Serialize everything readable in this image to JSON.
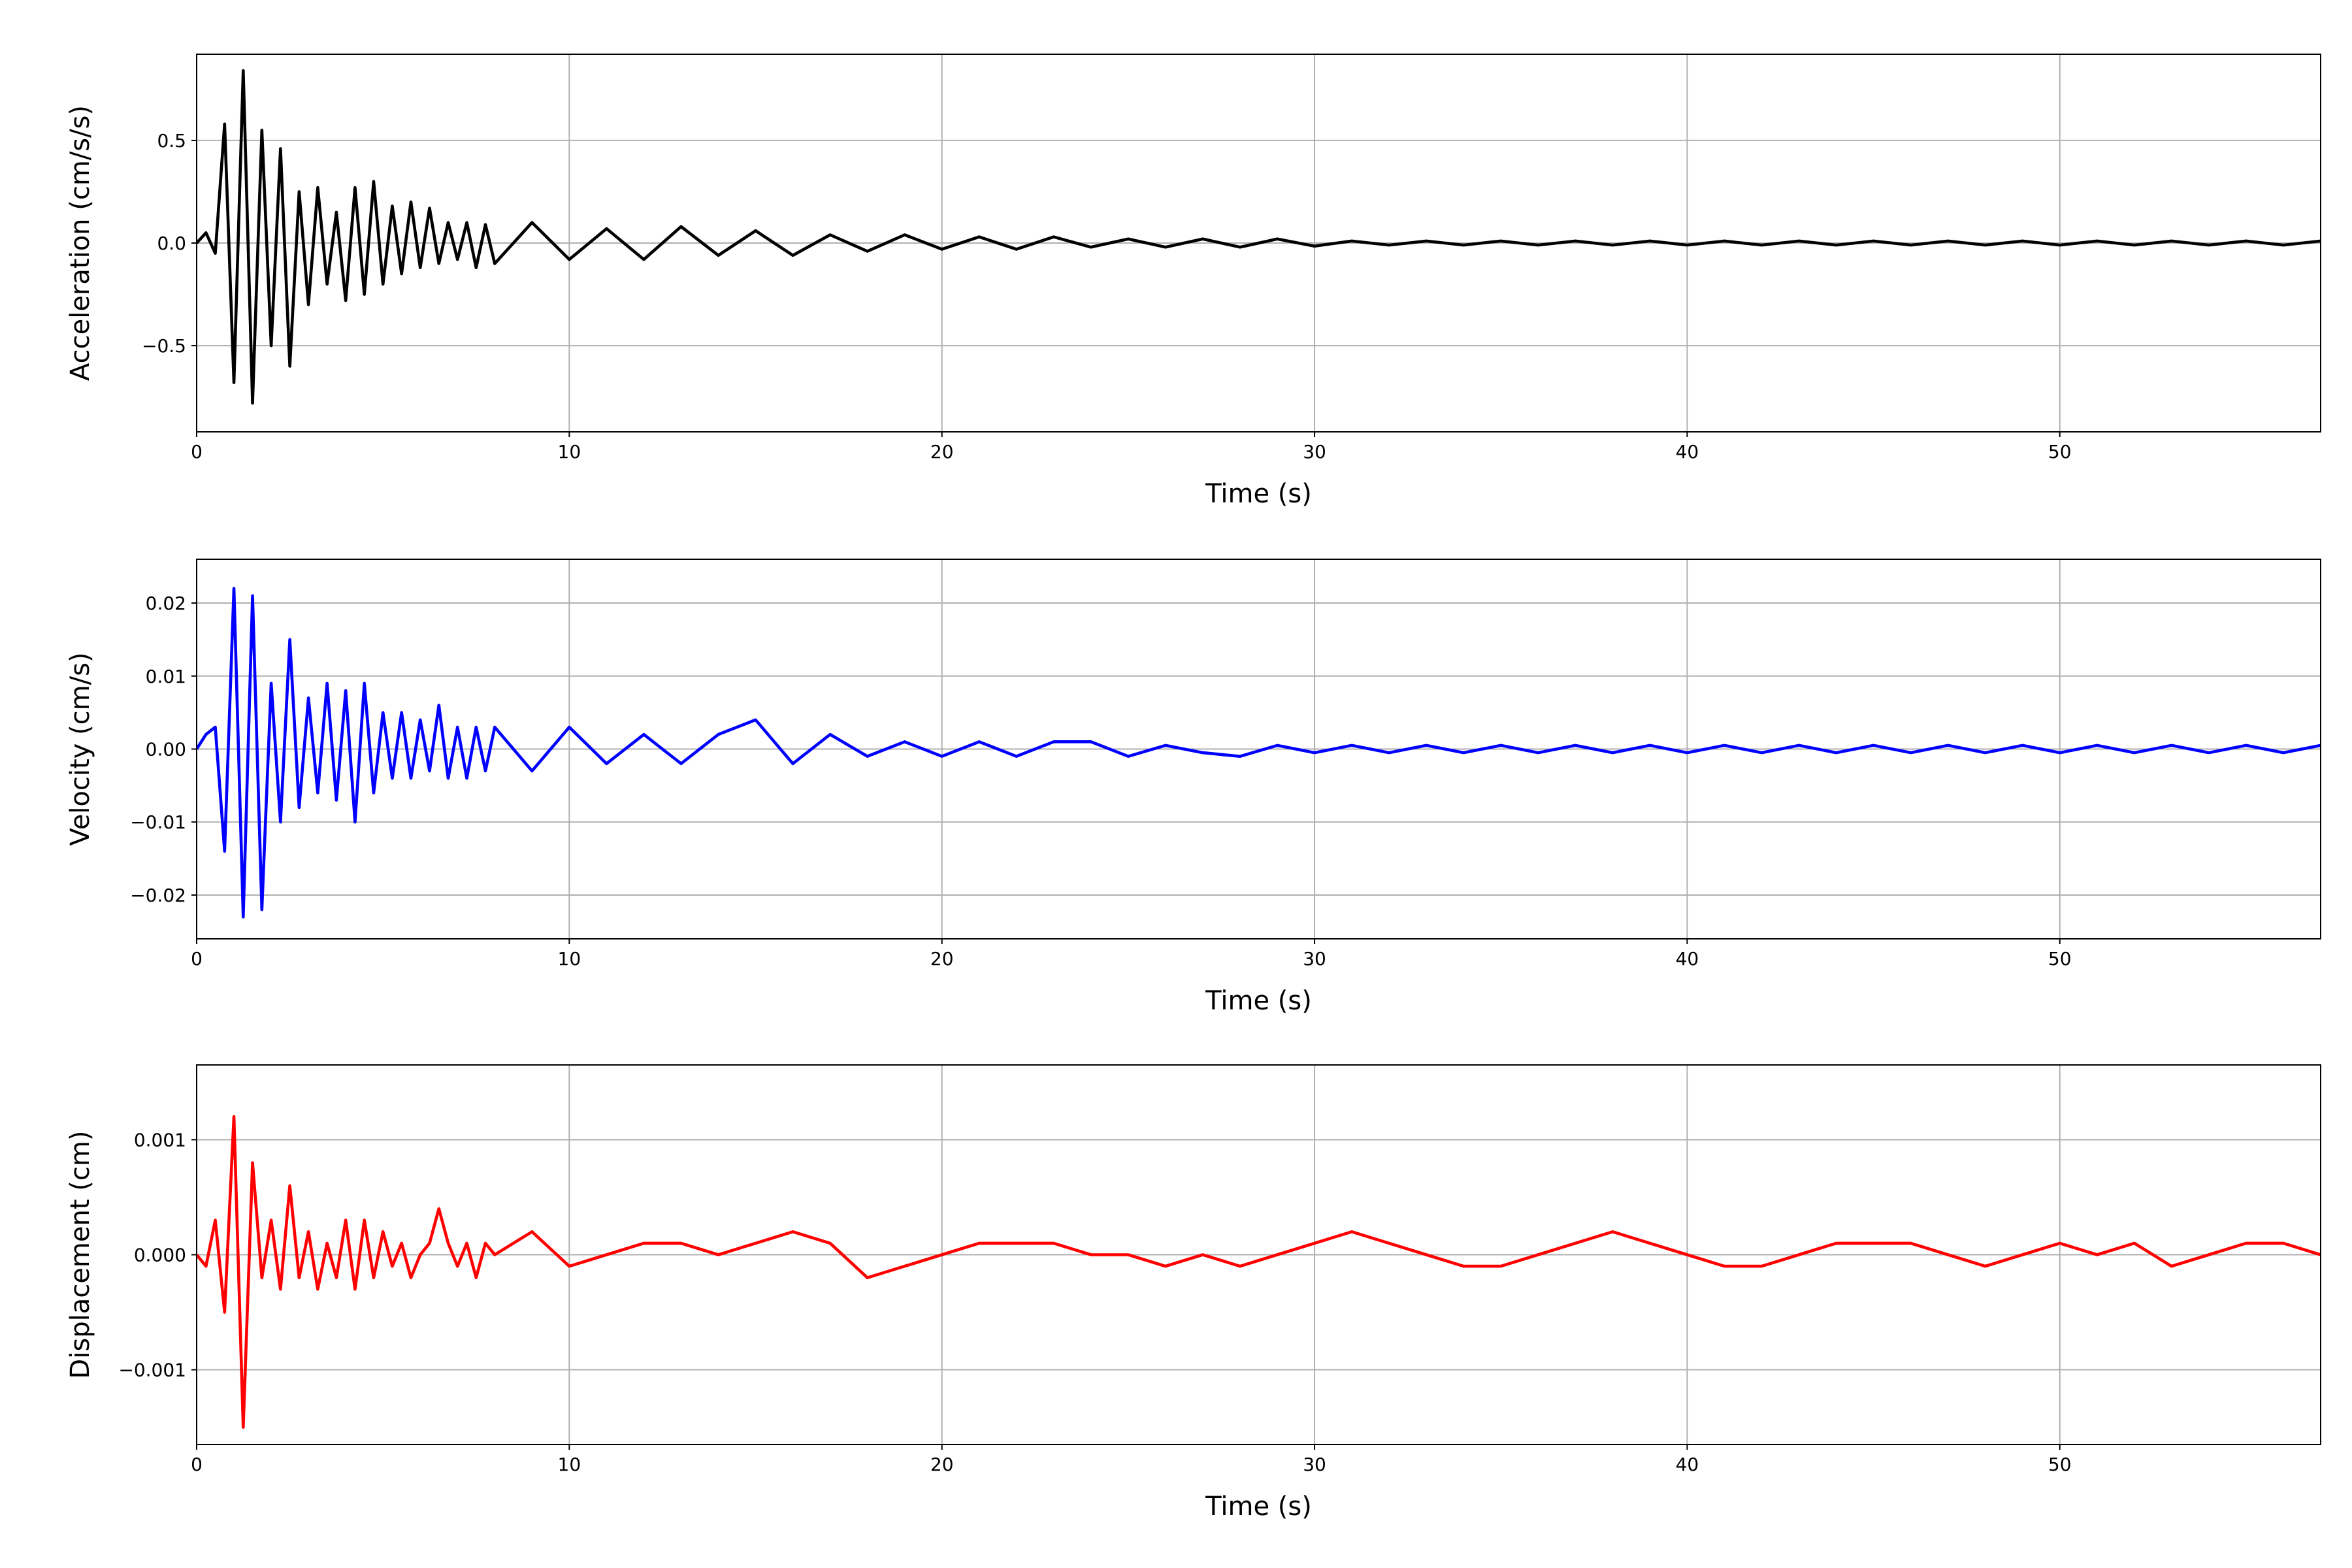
{
  "chart_data": [
    {
      "type": "line",
      "xlabel": "Time (s)",
      "ylabel": "Acceleration (cm/s/s)",
      "color": "#000000",
      "grid": true,
      "xlim": [
        0,
        57
      ],
      "xticks": [
        0,
        10,
        20,
        30,
        40,
        50
      ],
      "ylim": [
        -0.92,
        0.92
      ],
      "yticks": [
        {
          "value": -0.5,
          "label": "−0.5"
        },
        {
          "value": 0,
          "label": "0.0"
        },
        0.5
      ],
      "x": [
        0,
        0.25,
        0.5,
        0.75,
        1,
        1.25,
        1.5,
        1.75,
        2,
        2.25,
        2.5,
        2.75,
        3,
        3.25,
        3.5,
        3.75,
        4,
        4.25,
        4.5,
        4.75,
        5,
        5.25,
        5.5,
        5.75,
        6,
        6.25,
        6.5,
        6.75,
        7,
        7.25,
        7.5,
        7.75,
        8,
        9,
        10,
        11,
        12,
        13,
        14,
        15,
        16,
        17,
        18,
        19,
        20,
        21,
        22,
        23,
        24,
        25,
        26,
        27,
        28,
        29,
        30,
        31,
        32,
        33,
        34,
        35,
        36,
        37,
        38,
        39,
        40,
        41,
        42,
        43,
        44,
        45,
        46,
        47,
        48,
        49,
        50,
        51,
        52,
        53,
        54,
        55,
        56,
        57
      ],
      "values": [
        0,
        0.05,
        -0.05,
        0.58,
        -0.68,
        0.84,
        -0.78,
        0.55,
        -0.5,
        0.46,
        -0.6,
        0.25,
        -0.3,
        0.27,
        -0.2,
        0.15,
        -0.28,
        0.27,
        -0.25,
        0.3,
        -0.2,
        0.18,
        -0.15,
        0.2,
        -0.12,
        0.17,
        -0.1,
        0.1,
        -0.08,
        0.1,
        -0.12,
        0.09,
        -0.1,
        0.1,
        -0.08,
        0.07,
        -0.08,
        0.08,
        -0.06,
        0.06,
        -0.06,
        0.04,
        -0.04,
        0.04,
        -0.03,
        0.03,
        -0.03,
        0.03,
        -0.02,
        0.02,
        -0.02,
        0.02,
        -0.02,
        0.02,
        -0.015,
        0.01,
        -0.01,
        0.01,
        -0.01,
        0.01,
        -0.01,
        0.01,
        -0.01,
        0.01,
        -0.01,
        0.01,
        -0.01,
        0.01,
        -0.01,
        0.01,
        -0.01,
        0.01,
        -0.01,
        0.01,
        -0.01,
        0.01,
        -0.01,
        0.01,
        -0.01,
        0.01,
        -0.01,
        0.01
      ]
    },
    {
      "type": "line",
      "xlabel": "Time (s)",
      "ylabel": "Velocity (cm/s)",
      "color": "#0000ff",
      "grid": true,
      "xlim": [
        0,
        57
      ],
      "xticks": [
        0,
        10,
        20,
        30,
        40,
        50
      ],
      "ylim": [
        -0.026,
        0.026
      ],
      "yticks": [
        {
          "value": -0.02,
          "label": "−0.02"
        },
        {
          "value": -0.01,
          "label": "−0.01"
        },
        {
          "value": 0,
          "label": "0.00"
        },
        0.01,
        0.02
      ],
      "x": [
        0,
        0.25,
        0.5,
        0.75,
        1,
        1.25,
        1.5,
        1.75,
        2,
        2.25,
        2.5,
        2.75,
        3,
        3.25,
        3.5,
        3.75,
        4,
        4.25,
        4.5,
        4.75,
        5,
        5.25,
        5.5,
        5.75,
        6,
        6.25,
        6.5,
        6.75,
        7,
        7.25,
        7.5,
        7.75,
        8,
        9,
        10,
        11,
        12,
        13,
        14,
        15,
        16,
        17,
        18,
        19,
        20,
        21,
        22,
        23,
        24,
        25,
        26,
        27,
        28,
        29,
        30,
        31,
        32,
        33,
        34,
        35,
        36,
        37,
        38,
        39,
        40,
        41,
        42,
        43,
        44,
        45,
        46,
        47,
        48,
        49,
        50,
        51,
        52,
        53,
        54,
        55,
        56,
        57
      ],
      "values": [
        0,
        0.002,
        0.003,
        -0.014,
        0.022,
        -0.023,
        0.021,
        -0.022,
        0.009,
        -0.01,
        0.015,
        -0.008,
        0.007,
        -0.006,
        0.009,
        -0.007,
        0.008,
        -0.01,
        0.009,
        -0.006,
        0.005,
        -0.004,
        0.005,
        -0.004,
        0.004,
        -0.003,
        0.006,
        -0.004,
        0.003,
        -0.004,
        0.003,
        -0.003,
        0.003,
        -0.003,
        0.003,
        -0.002,
        0.002,
        -0.002,
        0.002,
        0.004,
        -0.002,
        0.002,
        -0.001,
        0.001,
        -0.001,
        0.001,
        -0.001,
        0.001,
        0.001,
        -0.001,
        0.0005,
        -0.0005,
        -0.001,
        0.0005,
        -0.0005,
        0.0005,
        -0.0005,
        0.0005,
        -0.0005,
        0.0005,
        -0.0005,
        0.0005,
        -0.0005,
        0.0005,
        -0.0005,
        0.0005,
        -0.0005,
        0.0005,
        -0.0005,
        0.0005,
        -0.0005,
        0.0005,
        -0.0005,
        0.0005,
        -0.0005,
        0.0005,
        -0.0005,
        0.0005,
        -0.0005,
        0.0005,
        -0.0005,
        0.0005
      ]
    },
    {
      "type": "line",
      "xlabel": "Time (s)",
      "ylabel": "Displacement (cm)",
      "color": "#ff0000",
      "grid": true,
      "xlim": [
        0,
        57
      ],
      "xticks": [
        0,
        10,
        20,
        30,
        40,
        50
      ],
      "ylim": [
        -0.00165,
        0.00165
      ],
      "yticks": [
        {
          "value": -0.001,
          "label": "−0.001"
        },
        {
          "value": 0,
          "label": "0.000"
        },
        0.001
      ],
      "x": [
        0,
        0.25,
        0.5,
        0.75,
        1,
        1.25,
        1.5,
        1.75,
        2,
        2.25,
        2.5,
        2.75,
        3,
        3.25,
        3.5,
        3.75,
        4,
        4.25,
        4.5,
        4.75,
        5,
        5.25,
        5.5,
        5.75,
        6,
        6.25,
        6.5,
        6.75,
        7,
        7.25,
        7.5,
        7.75,
        8,
        9,
        10,
        11,
        12,
        13,
        14,
        15,
        16,
        17,
        18,
        19,
        20,
        21,
        22,
        23,
        24,
        25,
        26,
        27,
        28,
        29,
        30,
        31,
        32,
        33,
        34,
        35,
        36,
        37,
        38,
        39,
        40,
        41,
        42,
        43,
        44,
        45,
        46,
        47,
        48,
        49,
        50,
        51,
        52,
        53,
        54,
        55,
        56,
        57
      ],
      "values": [
        0,
        -0.0001,
        0.0003,
        -0.0005,
        0.0012,
        -0.0015,
        0.0008,
        -0.0002,
        0.0003,
        -0.0003,
        0.0006,
        -0.0002,
        0.0002,
        -0.0003,
        0.0001,
        -0.0002,
        0.0003,
        -0.0003,
        0.0003,
        -0.0002,
        0.0002,
        -0.0001,
        0.0001,
        -0.0002,
        0,
        0.0001,
        0.0004,
        0.0001,
        -0.0001,
        0.0001,
        -0.0002,
        0.0001,
        0,
        0.0002,
        -0.0001,
        0,
        0.0001,
        0.0001,
        0,
        0.0001,
        0.0002,
        0.0001,
        -0.0002,
        -0.0001,
        0,
        0.0001,
        0.0001,
        0.0001,
        0,
        0,
        -0.0001,
        0,
        -0.0001,
        0,
        0.0001,
        0.0002,
        0.0001,
        0,
        -0.0001,
        -0.0001,
        0,
        0.0001,
        0.0002,
        0.0001,
        0,
        -0.0001,
        -0.0001,
        0,
        0.0001,
        0.0001,
        0.0001,
        0,
        -0.0001,
        0,
        0.0001,
        0,
        0.0001,
        -0.0001,
        0,
        0.0001,
        0.0001,
        0
      ]
    }
  ]
}
